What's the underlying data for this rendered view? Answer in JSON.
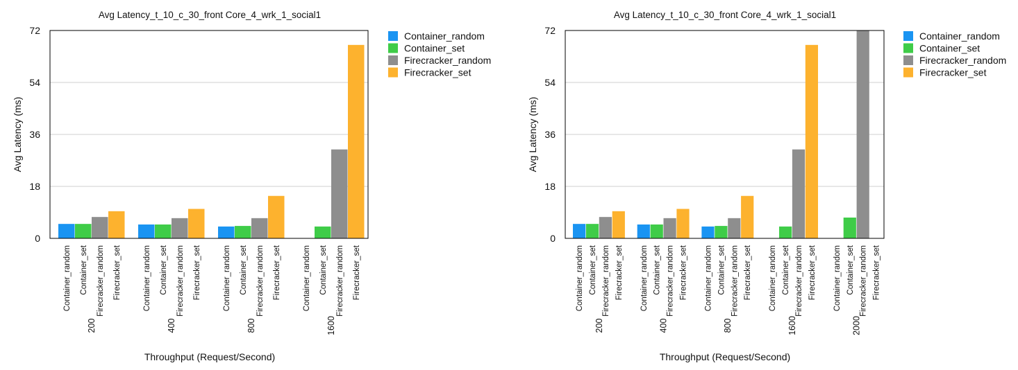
{
  "colors": {
    "Container_random": "#1a94f2",
    "Container_set": "#3fcc48",
    "Firecracker_random": "#8e8e8e",
    "Firecracker_set": "#fdb22e",
    "grid": "#cfcfcf",
    "axis": "#000000"
  },
  "chart_data": [
    {
      "type": "bar",
      "title": "Avg Latency_t_10_c_30_front Core_4_wrk_1_social1",
      "xlabel": "Throughput (Request/Second)",
      "ylabel": "Avg Latency (ms)",
      "ylim": [
        0,
        72
      ],
      "yticks": [
        "0",
        "18",
        "36",
        "54",
        "72"
      ],
      "grid": true,
      "legend_position": "right",
      "categories": [
        "200",
        "400",
        "800",
        "1600"
      ],
      "series": [
        {
          "name": "Container_random",
          "values": [
            5.0,
            4.8,
            4.1,
            null
          ]
        },
        {
          "name": "Container_set",
          "values": [
            5.0,
            4.8,
            4.3,
            4.1
          ]
        },
        {
          "name": "Firecracker_random",
          "values": [
            7.4,
            7.0,
            7.0,
            30.8
          ]
        },
        {
          "name": "Firecracker_set",
          "values": [
            9.4,
            10.2,
            14.7,
            67.0
          ]
        }
      ]
    },
    {
      "type": "bar",
      "title": "Avg Latency_t_10_c_30_front Core_4_wrk_1_social1",
      "xlabel": "Throughput (Request/Second)",
      "ylabel": "Avg Latency (ms)",
      "ylim": [
        0,
        72
      ],
      "yticks": [
        "0",
        "18",
        "36",
        "54",
        "72"
      ],
      "grid": true,
      "legend_position": "right",
      "categories": [
        "200",
        "400",
        "800",
        "1600",
        "2000"
      ],
      "series": [
        {
          "name": "Container_random",
          "values": [
            5.0,
            4.8,
            4.1,
            null,
            null
          ]
        },
        {
          "name": "Container_set",
          "values": [
            5.0,
            4.8,
            4.3,
            4.1,
            7.2
          ]
        },
        {
          "name": "Firecracker_random",
          "values": [
            7.4,
            7.0,
            7.0,
            30.8,
            72
          ]
        },
        {
          "name": "Firecracker_set",
          "values": [
            9.4,
            10.2,
            14.7,
            67.0,
            null
          ]
        }
      ]
    }
  ]
}
